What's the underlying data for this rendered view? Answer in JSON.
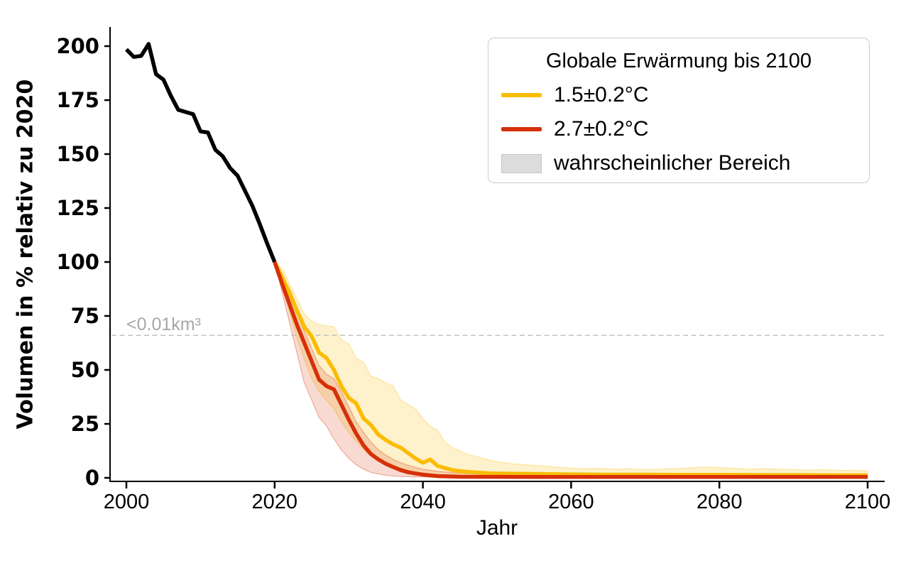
{
  "colors": {
    "historical": "#000000",
    "scenario_1p5": "#fbbc05",
    "scenario_2p7": "#d63008",
    "band_gray_swatch": "#dcdcdc",
    "threshold_gray": "#bfbfbf",
    "axis": "#000000"
  },
  "legend": {
    "title": "Globale Erwärmung bis 2100",
    "entries": [
      {
        "swatch": "line",
        "color": "#fbbc05",
        "label": "1.5±0.2°C"
      },
      {
        "swatch": "line",
        "color": "#d63008",
        "label": "2.7±0.2°C"
      },
      {
        "swatch": "patch",
        "color": "#dcdcdc",
        "label": "wahrscheinlicher Bereich"
      }
    ]
  },
  "chart_data": {
    "type": "line",
    "title": "",
    "xlabel": "Jahr",
    "ylabel": "Volumen in % relativ zu 2020",
    "xlim": [
      1997.8,
      2102.3
    ],
    "ylim": [
      -1.7,
      210
    ],
    "xticks": [
      2000,
      2020,
      2040,
      2060,
      2080,
      2100
    ],
    "yticks": [
      0,
      25,
      50,
      75,
      100,
      125,
      150,
      175,
      200
    ],
    "grid": false,
    "legend_position": "upper right",
    "threshold_line": {
      "value": 66,
      "label": "<0.01km³",
      "style": "dashed",
      "color": "#bfbfbf"
    },
    "series": [
      {
        "name": "historical",
        "color": "#000000",
        "width": 5.5,
        "points": [
          [
            2000,
            198.5
          ],
          [
            2001,
            195
          ],
          [
            2002,
            195.5
          ],
          [
            2003,
            201
          ],
          [
            2004,
            187
          ],
          [
            2005,
            184.5
          ],
          [
            2006,
            177
          ],
          [
            2007,
            170.5
          ],
          [
            2008,
            169.5
          ],
          [
            2009,
            168.5
          ],
          [
            2010,
            160.5
          ],
          [
            2011,
            160
          ],
          [
            2012,
            152
          ],
          [
            2013,
            149
          ],
          [
            2014,
            143.5
          ],
          [
            2015,
            140
          ],
          [
            2016,
            133
          ],
          [
            2017,
            126
          ],
          [
            2018,
            117.5
          ],
          [
            2019,
            108.5
          ],
          [
            2020,
            100
          ]
        ]
      },
      {
        "name": "1.5±0.2°C",
        "color": "#fbbc05",
        "width": 5.5,
        "points": [
          [
            2020,
            100
          ],
          [
            2021,
            93
          ],
          [
            2022,
            86
          ],
          [
            2023,
            77.5
          ],
          [
            2024,
            70
          ],
          [
            2025,
            65.5
          ],
          [
            2026,
            58
          ],
          [
            2027,
            55.5
          ],
          [
            2028,
            50
          ],
          [
            2029,
            42.5
          ],
          [
            2030,
            37
          ],
          [
            2031,
            34.5
          ],
          [
            2032,
            27.5
          ],
          [
            2033,
            24.5
          ],
          [
            2034,
            20
          ],
          [
            2035,
            17.5
          ],
          [
            2036,
            15.5
          ],
          [
            2037,
            14
          ],
          [
            2038,
            11.5
          ],
          [
            2039,
            9
          ],
          [
            2040,
            7
          ],
          [
            2041,
            8.5
          ],
          [
            2042,
            5.5
          ],
          [
            2043,
            4.5
          ],
          [
            2044,
            3.6
          ],
          [
            2045,
            3.1
          ],
          [
            2046,
            2.8
          ],
          [
            2047,
            2.5
          ],
          [
            2048,
            2.3
          ],
          [
            2049,
            2.1
          ],
          [
            2050,
            2
          ],
          [
            2055,
            1.8
          ],
          [
            2060,
            1.6
          ],
          [
            2065,
            1.5
          ],
          [
            2070,
            1.5
          ],
          [
            2075,
            1.4
          ],
          [
            2080,
            1.4
          ],
          [
            2085,
            1.3
          ],
          [
            2090,
            1.3
          ],
          [
            2095,
            1.2
          ],
          [
            2100,
            1.2
          ]
        ]
      },
      {
        "name": "2.7±0.2°C",
        "color": "#d63008",
        "width": 5.5,
        "points": [
          [
            2020,
            100
          ],
          [
            2021,
            90
          ],
          [
            2022,
            80.5
          ],
          [
            2023,
            71
          ],
          [
            2024,
            62.5
          ],
          [
            2025,
            54
          ],
          [
            2026,
            45.5
          ],
          [
            2027,
            42.5
          ],
          [
            2028,
            41
          ],
          [
            2029,
            34
          ],
          [
            2030,
            27
          ],
          [
            2031,
            20.5
          ],
          [
            2032,
            15
          ],
          [
            2033,
            11
          ],
          [
            2034,
            8.5
          ],
          [
            2035,
            6.5
          ],
          [
            2036,
            5
          ],
          [
            2037,
            3.6
          ],
          [
            2038,
            2.6
          ],
          [
            2039,
            2
          ],
          [
            2040,
            1.5
          ],
          [
            2041,
            1.1
          ],
          [
            2042,
            0.8
          ],
          [
            2043,
            0.7
          ],
          [
            2044,
            0.6
          ],
          [
            2045,
            0.5
          ],
          [
            2050,
            0.45
          ],
          [
            2060,
            0.4
          ],
          [
            2070,
            0.4
          ],
          [
            2080,
            0.4
          ],
          [
            2090,
            0.4
          ],
          [
            2100,
            0.4
          ]
        ]
      }
    ],
    "bands": [
      {
        "name": "1.5°C wahrscheinlicher Bereich",
        "color": "#fbbc05",
        "opacity": 0.2,
        "upper": [
          [
            2020,
            100
          ],
          [
            2021,
            97
          ],
          [
            2022,
            90
          ],
          [
            2023,
            83
          ],
          [
            2024,
            76
          ],
          [
            2025,
            72.5
          ],
          [
            2026,
            71
          ],
          [
            2027,
            70.5
          ],
          [
            2028,
            70
          ],
          [
            2029,
            64
          ],
          [
            2030,
            62
          ],
          [
            2031,
            55.5
          ],
          [
            2032,
            53.5
          ],
          [
            2033,
            47
          ],
          [
            2034,
            46
          ],
          [
            2035,
            44
          ],
          [
            2036,
            42.5
          ],
          [
            2037,
            36
          ],
          [
            2038,
            34
          ],
          [
            2039,
            32
          ],
          [
            2040,
            27.5
          ],
          [
            2041,
            24
          ],
          [
            2042,
            22
          ],
          [
            2043,
            16.5
          ],
          [
            2044,
            14
          ],
          [
            2045,
            12.5
          ],
          [
            2046,
            11
          ],
          [
            2047,
            10
          ],
          [
            2048,
            9.2
          ],
          [
            2049,
            8.3
          ],
          [
            2050,
            7.5
          ],
          [
            2052,
            6.5
          ],
          [
            2054,
            6
          ],
          [
            2056,
            5.5
          ],
          [
            2058,
            5
          ],
          [
            2060,
            4.5
          ],
          [
            2062,
            4.2
          ],
          [
            2064,
            4.4
          ],
          [
            2066,
            4
          ],
          [
            2068,
            4.2
          ],
          [
            2070,
            3.8
          ],
          [
            2072,
            4
          ],
          [
            2074,
            4.3
          ],
          [
            2076,
            4.6
          ],
          [
            2078,
            5
          ],
          [
            2080,
            4.8
          ],
          [
            2082,
            4.4
          ],
          [
            2084,
            4
          ],
          [
            2086,
            4.2
          ],
          [
            2088,
            4
          ],
          [
            2090,
            3.8
          ],
          [
            2092,
            3.6
          ],
          [
            2094,
            3.8
          ],
          [
            2096,
            3.5
          ],
          [
            2098,
            3.4
          ],
          [
            2100,
            3.3
          ]
        ],
        "lower": [
          [
            2020,
            100
          ],
          [
            2021,
            89
          ],
          [
            2022,
            77
          ],
          [
            2023,
            65
          ],
          [
            2024,
            55
          ],
          [
            2025,
            46
          ],
          [
            2026,
            40
          ],
          [
            2027,
            36
          ],
          [
            2028,
            32
          ],
          [
            2029,
            26
          ],
          [
            2030,
            21
          ],
          [
            2031,
            17
          ],
          [
            2032,
            13
          ],
          [
            2033,
            10
          ],
          [
            2034,
            8
          ],
          [
            2035,
            6.5
          ],
          [
            2036,
            5.5
          ],
          [
            2037,
            4.5
          ],
          [
            2038,
            3.5
          ],
          [
            2039,
            2.8
          ],
          [
            2040,
            2.2
          ],
          [
            2042,
            1.6
          ],
          [
            2044,
            1.2
          ],
          [
            2046,
            1
          ],
          [
            2048,
            0.9
          ],
          [
            2050,
            0.8
          ],
          [
            2060,
            0.6
          ],
          [
            2070,
            0.6
          ],
          [
            2080,
            0.5
          ],
          [
            2090,
            0.5
          ],
          [
            2100,
            0.5
          ]
        ]
      },
      {
        "name": "2.7°C wahrscheinlicher Bereich",
        "color": "#d63008",
        "opacity": 0.18,
        "upper": [
          [
            2020,
            100
          ],
          [
            2021,
            92
          ],
          [
            2022,
            84
          ],
          [
            2023,
            76
          ],
          [
            2024,
            68
          ],
          [
            2025,
            60
          ],
          [
            2026,
            52
          ],
          [
            2027,
            48
          ],
          [
            2028,
            46
          ],
          [
            2029,
            40
          ],
          [
            2030,
            33
          ],
          [
            2031,
            26
          ],
          [
            2032,
            21
          ],
          [
            2033,
            16.5
          ],
          [
            2034,
            13
          ],
          [
            2035,
            10.5
          ],
          [
            2036,
            8.5
          ],
          [
            2037,
            7
          ],
          [
            2038,
            5.8
          ],
          [
            2039,
            4.8
          ],
          [
            2040,
            4
          ],
          [
            2042,
            3
          ],
          [
            2044,
            2.4
          ],
          [
            2046,
            2
          ],
          [
            2048,
            1.7
          ],
          [
            2050,
            1.5
          ],
          [
            2060,
            1.1
          ],
          [
            2070,
            1
          ],
          [
            2080,
            1
          ],
          [
            2090,
            0.9
          ],
          [
            2100,
            0.9
          ]
        ],
        "lower": [
          [
            2020,
            100
          ],
          [
            2021,
            86
          ],
          [
            2022,
            72
          ],
          [
            2023,
            58
          ],
          [
            2024,
            44
          ],
          [
            2025,
            36
          ],
          [
            2026,
            28
          ],
          [
            2027,
            24
          ],
          [
            2028,
            18
          ],
          [
            2029,
            13
          ],
          [
            2030,
            9
          ],
          [
            2031,
            6
          ],
          [
            2032,
            4
          ],
          [
            2033,
            2.5
          ],
          [
            2034,
            1.8
          ],
          [
            2035,
            1.2
          ],
          [
            2036,
            0.8
          ],
          [
            2037,
            0.6
          ],
          [
            2038,
            0.5
          ],
          [
            2040,
            0.35
          ],
          [
            2045,
            0.25
          ],
          [
            2050,
            0.2
          ],
          [
            2060,
            0.15
          ],
          [
            2070,
            0.12
          ],
          [
            2080,
            0.1
          ],
          [
            2090,
            0.1
          ],
          [
            2100,
            0.1
          ]
        ]
      }
    ]
  }
}
